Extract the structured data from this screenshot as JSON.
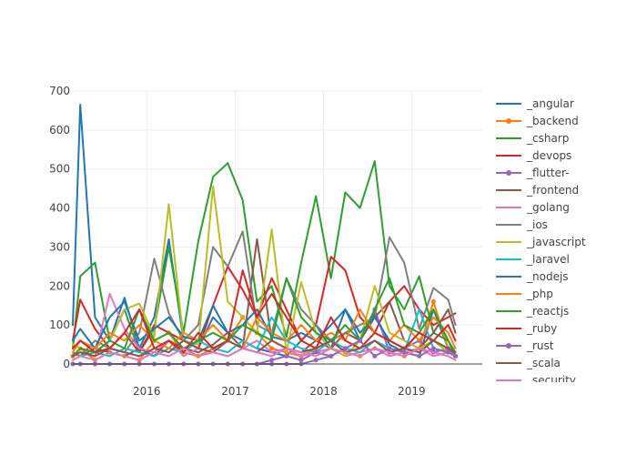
{
  "chart_data": {
    "type": "line",
    "title": "",
    "xlabel": "",
    "ylabel": "",
    "x_axis": {
      "type": "date",
      "range": [
        "2015-03-01",
        "2019-10-20"
      ],
      "ticks": [
        {
          "date": "2016-01-01",
          "label": "2016"
        },
        {
          "date": "2017-01-01",
          "label": "2017"
        },
        {
          "date": "2018-01-01",
          "label": "2018"
        },
        {
          "date": "2019-01-01",
          "label": "2019"
        }
      ]
    },
    "y_axis": {
      "range": [
        0,
        700
      ],
      "ticks": [
        0,
        100,
        200,
        300,
        400,
        500,
        600,
        700
      ]
    },
    "grid": true,
    "legend": "right",
    "x": [
      "2015-03",
      "2015-04",
      "2015-06",
      "2015-08",
      "2015-10",
      "2015-12",
      "2016-02",
      "2016-04",
      "2016-06",
      "2016-08",
      "2016-10",
      "2016-12",
      "2017-02",
      "2017-04",
      "2017-06",
      "2017-08",
      "2017-10",
      "2017-12",
      "2018-02",
      "2018-04",
      "2018-06",
      "2018-08",
      "2018-10",
      "2018-12",
      "2019-02",
      "2019-04",
      "2019-06",
      "2019-07"
    ],
    "series": [
      {
        "name": "_angular",
        "color": "#1f77b4",
        "marker": false,
        "values": [
          100,
          665,
          120,
          60,
          170,
          40,
          120,
          320,
          60,
          40,
          120,
          80,
          60,
          40,
          30,
          20,
          60,
          100,
          40,
          140,
          60,
          130,
          50,
          30,
          20,
          140,
          40,
          30
        ]
      },
      {
        "name": "_backend",
        "color": "#ff7f0e",
        "marker": true,
        "values": [
          20,
          40,
          10,
          30,
          20,
          10,
          60,
          80,
          30,
          20,
          40,
          60,
          120,
          80,
          40,
          30,
          20,
          40,
          60,
          30,
          20,
          40,
          30,
          20,
          40,
          160,
          40,
          20
        ]
      },
      {
        "name": "_csharp",
        "color": "#2ca02c",
        "marker": false,
        "values": [
          40,
          225,
          260,
          60,
          140,
          30,
          90,
          300,
          80,
          315,
          480,
          515,
          420,
          160,
          200,
          70,
          260,
          430,
          220,
          440,
          400,
          520,
          200,
          140,
          225,
          80,
          60,
          20
        ]
      },
      {
        "name": "_devops",
        "color": "#d62728",
        "marker": false,
        "values": [
          60,
          165,
          90,
          40,
          80,
          30,
          100,
          80,
          60,
          40,
          150,
          250,
          190,
          120,
          220,
          140,
          60,
          100,
          275,
          240,
          120,
          80,
          160,
          200,
          140,
          100,
          120,
          130
        ]
      },
      {
        "name": "_flutter-",
        "color": "#9467bd",
        "marker": true,
        "values": [
          0,
          0,
          0,
          0,
          0,
          0,
          0,
          0,
          0,
          0,
          0,
          0,
          0,
          0,
          0,
          0,
          0,
          10,
          20,
          40,
          60,
          140,
          30,
          40,
          60,
          30,
          40,
          20
        ]
      },
      {
        "name": "_frontend",
        "color": "#8c564b",
        "marker": false,
        "values": [
          30,
          20,
          40,
          30,
          20,
          40,
          20,
          60,
          40,
          30,
          50,
          80,
          40,
          320,
          60,
          40,
          30,
          60,
          40,
          80,
          60,
          120,
          160,
          60,
          40,
          80,
          140,
          80
        ]
      },
      {
        "name": "_golang",
        "color": "#e377c2",
        "marker": false,
        "values": [
          20,
          30,
          20,
          180,
          90,
          40,
          30,
          60,
          20,
          40,
          30,
          20,
          40,
          60,
          30,
          40,
          20,
          30,
          40,
          20,
          30,
          40,
          20,
          30,
          40,
          20,
          30,
          20
        ]
      },
      {
        "name": "_ios",
        "color": "#7f7f7f",
        "marker": false,
        "values": [
          30,
          20,
          60,
          40,
          30,
          80,
          270,
          130,
          60,
          100,
          300,
          250,
          340,
          100,
          80,
          220,
          140,
          100,
          60,
          80,
          100,
          120,
          325,
          260,
          90,
          195,
          165,
          100
        ]
      },
      {
        "name": "_javascript",
        "color": "#bcbd22",
        "marker": false,
        "values": [
          50,
          40,
          30,
          60,
          140,
          155,
          70,
          410,
          60,
          50,
          455,
          160,
          120,
          80,
          345,
          30,
          210,
          80,
          40,
          20,
          60,
          200,
          80,
          60,
          40,
          60,
          30,
          20
        ]
      },
      {
        "name": "_laravel",
        "color": "#17becf",
        "marker": false,
        "values": [
          10,
          20,
          30,
          20,
          40,
          30,
          20,
          40,
          30,
          60,
          40,
          30,
          60,
          40,
          120,
          60,
          40,
          30,
          60,
          40,
          30,
          60,
          40,
          30,
          140,
          40,
          30,
          20
        ]
      },
      {
        "name": "_nodejs",
        "color": "#1f77b4",
        "marker": false,
        "values": [
          60,
          90,
          40,
          120,
          160,
          60,
          90,
          120,
          70,
          60,
          150,
          80,
          100,
          140,
          70,
          60,
          80,
          60,
          100,
          140,
          80,
          120,
          60,
          40,
          80,
          60,
          40,
          30
        ]
      },
      {
        "name": "_php",
        "color": "#ff7f0e",
        "marker": false,
        "values": [
          30,
          60,
          40,
          80,
          60,
          100,
          60,
          40,
          80,
          60,
          100,
          60,
          40,
          120,
          80,
          60,
          100,
          60,
          80,
          60,
          140,
          80,
          60,
          100,
          60,
          120,
          80,
          40
        ]
      },
      {
        "name": "_reactjs",
        "color": "#2ca02c",
        "marker": false,
        "values": [
          20,
          40,
          30,
          60,
          40,
          140,
          60,
          80,
          40,
          60,
          80,
          60,
          100,
          80,
          60,
          220,
          120,
          80,
          60,
          100,
          60,
          140,
          220,
          100,
          80,
          140,
          60,
          30
        ]
      },
      {
        "name": "_ruby",
        "color": "#d62728",
        "marker": false,
        "values": [
          40,
          60,
          30,
          40,
          80,
          140,
          40,
          60,
          30,
          80,
          40,
          60,
          240,
          120,
          180,
          120,
          60,
          40,
          120,
          60,
          40,
          80,
          60,
          40,
          80,
          60,
          100,
          60
        ]
      },
      {
        "name": "_rust",
        "color": "#9467bd",
        "marker": true,
        "values": [
          0,
          0,
          0,
          0,
          0,
          0,
          0,
          0,
          0,
          0,
          0,
          0,
          0,
          0,
          10,
          20,
          10,
          30,
          20,
          40,
          60,
          20,
          40,
          30,
          20,
          40,
          30,
          20
        ]
      },
      {
        "name": "_scala",
        "color": "#8c564b",
        "marker": false,
        "values": [
          20,
          30,
          20,
          40,
          30,
          20,
          40,
          30,
          60,
          40,
          30,
          60,
          40,
          30,
          60,
          40,
          30,
          40,
          60,
          30,
          40,
          60,
          30,
          40,
          30,
          60,
          40,
          30
        ]
      },
      {
        "name": "_security",
        "color": "#e377c2",
        "marker": false,
        "values": [
          10,
          20,
          10,
          30,
          20,
          10,
          30,
          20,
          40,
          20,
          30,
          20,
          40,
          30,
          20,
          40,
          30,
          20,
          40,
          30,
          20,
          40,
          30,
          20,
          40,
          30,
          20,
          10
        ]
      }
    ]
  }
}
